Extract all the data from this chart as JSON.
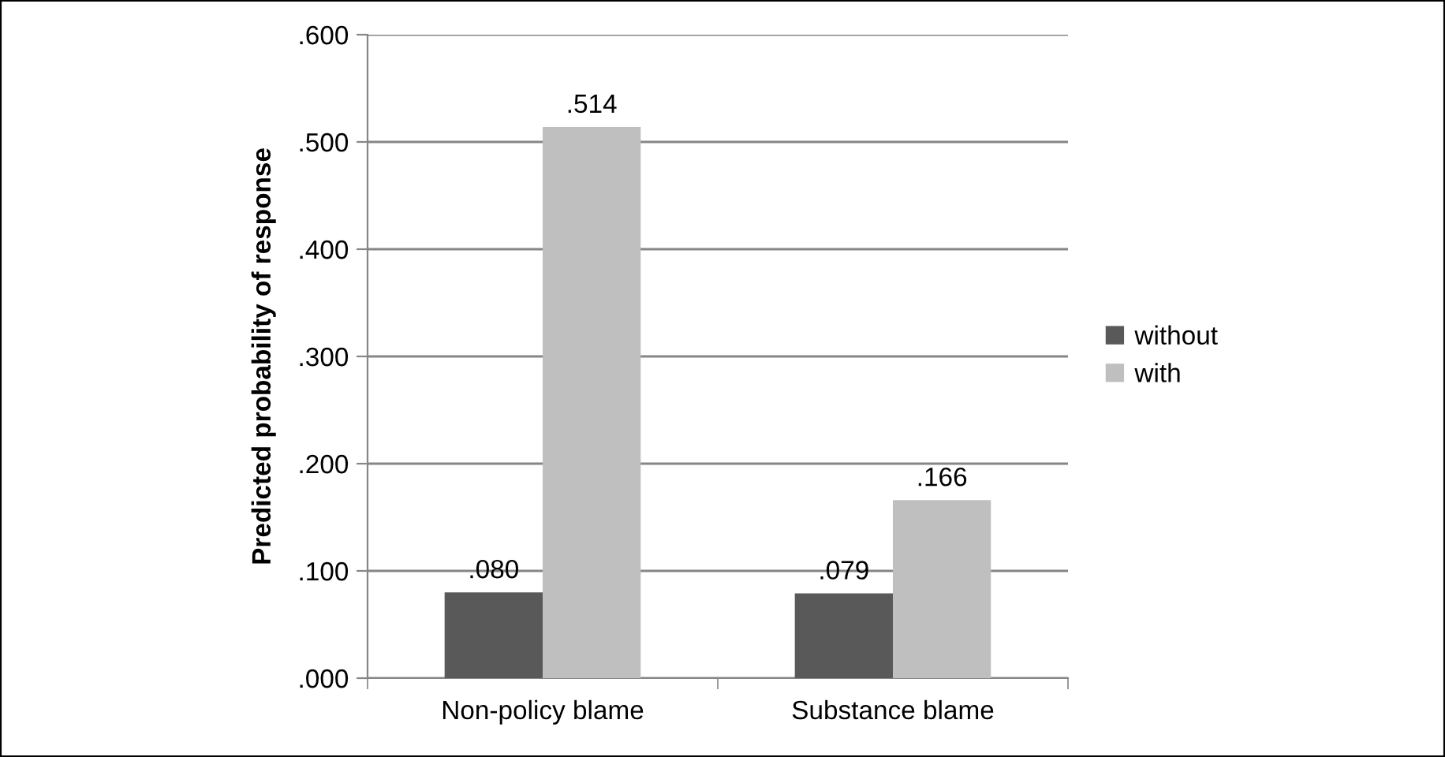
{
  "chart_data": {
    "type": "bar",
    "ylabel": "Predicted probability of response",
    "categories": [
      "Non-policy blame",
      "Substance blame"
    ],
    "series": [
      {
        "name": "without",
        "color": "#595959",
        "values": [
          0.08,
          0.079
        ],
        "value_labels": [
          ".080",
          ".079"
        ]
      },
      {
        "name": "with",
        "color": "#bfbfbf",
        "values": [
          0.514,
          0.166
        ],
        "value_labels": [
          ".514",
          ".166"
        ]
      }
    ],
    "ylim": [
      0,
      0.6
    ],
    "yticks": [
      {
        "value": 0,
        "label": ".000"
      },
      {
        "value": 0.1,
        "label": ".100"
      },
      {
        "value": 0.2,
        "label": ".200"
      },
      {
        "value": 0.3,
        "label": ".300"
      },
      {
        "value": 0.4,
        "label": ".400"
      },
      {
        "value": 0.5,
        "label": ".500"
      },
      {
        "value": 0.6,
        "label": ".600"
      }
    ],
    "grid": "y",
    "legend": "right"
  }
}
